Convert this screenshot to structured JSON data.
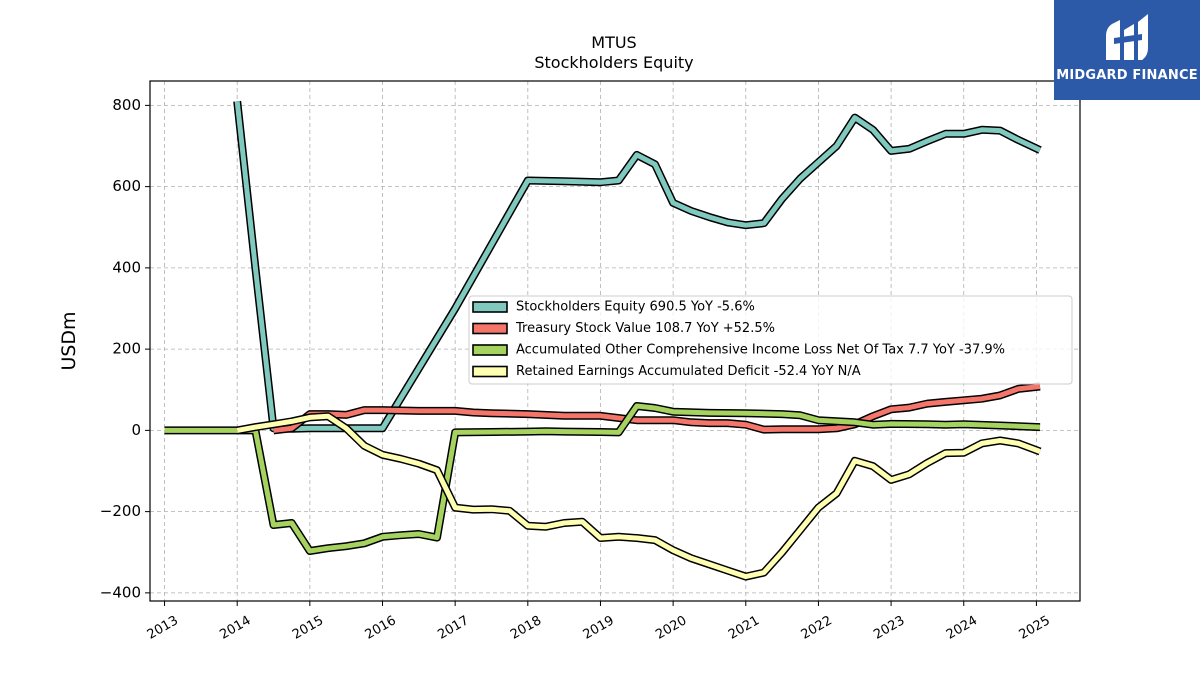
{
  "brand": {
    "name": "MIDGARD FINANCE",
    "color": "#2d5aa8"
  },
  "chart_data": {
    "type": "line",
    "title": "MTUS",
    "subtitle": "Stockholders  Equity",
    "ylabel": "USDm",
    "xlabel": "",
    "ylim": [
      -420,
      860
    ],
    "xlim": [
      2012.8,
      2025.6
    ],
    "y_ticks": [
      -400,
      -200,
      0,
      200,
      400,
      600,
      800
    ],
    "y_tick_labels": [
      "−400",
      "−200",
      "0",
      "200",
      "400",
      "600",
      "800"
    ],
    "x_ticks": [
      2013,
      2014,
      2015,
      2016,
      2017,
      2018,
      2019,
      2020,
      2021,
      2022,
      2023,
      2024,
      2025
    ],
    "x_tick_labels": [
      "2013",
      "2014",
      "2015",
      "2016",
      "2017",
      "2018",
      "2019",
      "2020",
      "2021",
      "2022",
      "2023",
      "2024",
      "2025"
    ],
    "grid": true,
    "legend_position": "center-right",
    "series": [
      {
        "name": "Stockholders Equity  690.5 YoY -5.6%",
        "color": "#7fc9bf",
        "points": [
          [
            2014.0,
            810
          ],
          [
            2014.25,
            400
          ],
          [
            2014.5,
            5
          ],
          [
            2014.75,
            4
          ],
          [
            2015.0,
            5
          ],
          [
            2015.25,
            5
          ],
          [
            2015.5,
            5
          ],
          [
            2015.75,
            5
          ],
          [
            2016.0,
            5
          ],
          [
            2017.0,
            300
          ],
          [
            2018.0,
            615
          ],
          [
            2018.5,
            613
          ],
          [
            2019.0,
            611
          ],
          [
            2019.25,
            615
          ],
          [
            2019.5,
            678
          ],
          [
            2019.75,
            655
          ],
          [
            2020.0,
            560
          ],
          [
            2020.25,
            540
          ],
          [
            2020.5,
            525
          ],
          [
            2020.75,
            512
          ],
          [
            2021.0,
            505
          ],
          [
            2021.25,
            510
          ],
          [
            2021.5,
            570
          ],
          [
            2021.75,
            620
          ],
          [
            2022.0,
            660
          ],
          [
            2022.25,
            700
          ],
          [
            2022.5,
            770
          ],
          [
            2022.75,
            740
          ],
          [
            2023.0,
            688
          ],
          [
            2023.25,
            693
          ],
          [
            2023.5,
            712
          ],
          [
            2023.75,
            730
          ],
          [
            2024.0,
            730
          ],
          [
            2024.25,
            740
          ],
          [
            2024.5,
            738
          ],
          [
            2024.75,
            715
          ],
          [
            2025.05,
            690
          ]
        ]
      },
      {
        "name": "Treasury Stock Value  108.7 YoY +52.5%",
        "color": "#f4766b",
        "points": [
          [
            2014.5,
            0
          ],
          [
            2014.75,
            5
          ],
          [
            2015.0,
            40
          ],
          [
            2015.25,
            40
          ],
          [
            2015.5,
            38
          ],
          [
            2015.75,
            50
          ],
          [
            2016.0,
            50
          ],
          [
            2016.5,
            48
          ],
          [
            2017.0,
            48
          ],
          [
            2017.25,
            44
          ],
          [
            2017.5,
            42
          ],
          [
            2018.0,
            40
          ],
          [
            2018.5,
            36
          ],
          [
            2019.0,
            36
          ],
          [
            2019.5,
            25
          ],
          [
            2020.0,
            25
          ],
          [
            2020.25,
            20
          ],
          [
            2020.5,
            18
          ],
          [
            2020.75,
            18
          ],
          [
            2021.0,
            14
          ],
          [
            2021.25,
            2
          ],
          [
            2021.5,
            3
          ],
          [
            2022.0,
            3
          ],
          [
            2022.25,
            5
          ],
          [
            2022.5,
            15
          ],
          [
            2022.75,
            35
          ],
          [
            2023.0,
            52
          ],
          [
            2023.25,
            56
          ],
          [
            2023.5,
            66
          ],
          [
            2023.75,
            70
          ],
          [
            2024.0,
            74
          ],
          [
            2024.25,
            78
          ],
          [
            2024.5,
            86
          ],
          [
            2024.75,
            102
          ],
          [
            2025.05,
            108
          ]
        ]
      },
      {
        "name": "Accumulated Other Comprehensive Income Loss Net Of Tax  7.7 YoY -37.9%",
        "color": "#a6d35f",
        "points": [
          [
            2013.0,
            0
          ],
          [
            2014.0,
            0
          ],
          [
            2014.25,
            0
          ],
          [
            2014.5,
            -233
          ],
          [
            2014.75,
            -228
          ],
          [
            2015.0,
            -297
          ],
          [
            2015.25,
            -290
          ],
          [
            2015.5,
            -285
          ],
          [
            2015.75,
            -278
          ],
          [
            2016.0,
            -262
          ],
          [
            2016.25,
            -258
          ],
          [
            2016.5,
            -255
          ],
          [
            2016.75,
            -264
          ],
          [
            2017.0,
            -5
          ],
          [
            2017.5,
            -4
          ],
          [
            2018.0,
            -3
          ],
          [
            2018.25,
            -2
          ],
          [
            2018.5,
            -3
          ],
          [
            2019.0,
            -4
          ],
          [
            2019.25,
            -5
          ],
          [
            2019.5,
            60
          ],
          [
            2019.75,
            55
          ],
          [
            2020.0,
            46
          ],
          [
            2020.5,
            43
          ],
          [
            2021.0,
            42
          ],
          [
            2021.5,
            40
          ],
          [
            2021.75,
            37
          ],
          [
            2022.0,
            25
          ],
          [
            2022.5,
            20
          ],
          [
            2022.75,
            14
          ],
          [
            2023.0,
            16
          ],
          [
            2023.5,
            15
          ],
          [
            2023.75,
            14
          ],
          [
            2024.0,
            15
          ],
          [
            2024.5,
            12
          ],
          [
            2025.05,
            8
          ]
        ]
      },
      {
        "name": "Retained Earnings Accumulated Deficit  -52.4 YoY N/A",
        "color": "#ffffb2",
        "points": [
          [
            2014.0,
            0
          ],
          [
            2014.25,
            8
          ],
          [
            2014.5,
            15
          ],
          [
            2014.75,
            22
          ],
          [
            2015.0,
            32
          ],
          [
            2015.25,
            35
          ],
          [
            2015.5,
            5
          ],
          [
            2015.75,
            -38
          ],
          [
            2016.0,
            -60
          ],
          [
            2016.25,
            -70
          ],
          [
            2016.5,
            -82
          ],
          [
            2016.75,
            -98
          ],
          [
            2017.0,
            -190
          ],
          [
            2017.25,
            -195
          ],
          [
            2017.5,
            -194
          ],
          [
            2017.75,
            -198
          ],
          [
            2018.0,
            -235
          ],
          [
            2018.25,
            -237
          ],
          [
            2018.5,
            -228
          ],
          [
            2018.75,
            -225
          ],
          [
            2019.0,
            -265
          ],
          [
            2019.25,
            -262
          ],
          [
            2019.5,
            -265
          ],
          [
            2019.75,
            -270
          ],
          [
            2020.0,
            -295
          ],
          [
            2020.25,
            -315
          ],
          [
            2020.5,
            -330
          ],
          [
            2020.75,
            -345
          ],
          [
            2021.0,
            -360
          ],
          [
            2021.25,
            -350
          ],
          [
            2021.5,
            -300
          ],
          [
            2021.75,
            -245
          ],
          [
            2022.0,
            -190
          ],
          [
            2022.25,
            -155
          ],
          [
            2022.5,
            -75
          ],
          [
            2022.75,
            -88
          ],
          [
            2023.0,
            -122
          ],
          [
            2023.25,
            -108
          ],
          [
            2023.5,
            -80
          ],
          [
            2023.75,
            -56
          ],
          [
            2024.0,
            -55
          ],
          [
            2024.25,
            -32
          ],
          [
            2024.5,
            -25
          ],
          [
            2024.75,
            -32
          ],
          [
            2025.05,
            -52
          ]
        ]
      }
    ]
  }
}
